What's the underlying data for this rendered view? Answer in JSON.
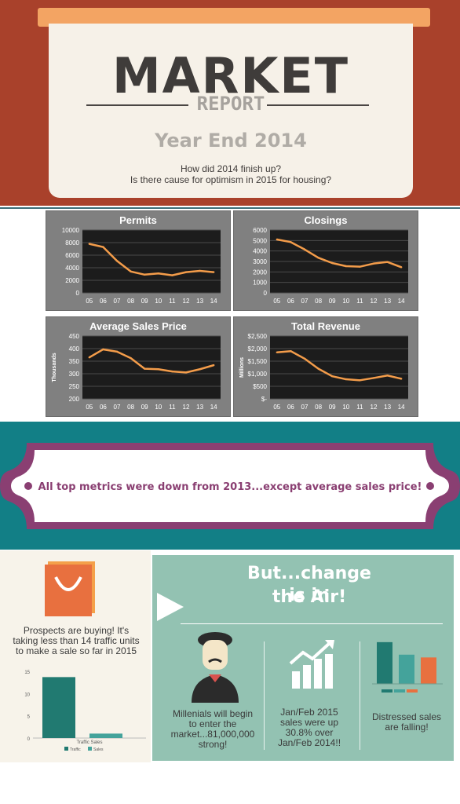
{
  "header": {
    "title": "MARKET",
    "subtitle": "REPORT",
    "year": "Year End 2014",
    "question1": "How did 2014 finish up?",
    "question2": "Is there cause for optimism in 2015 for housing?"
  },
  "colors": {
    "header_bg": "#a9412b",
    "line": "#f39c4a",
    "teal": "#127f86",
    "purple": "#8a3f72",
    "mint": "#93c2b2"
  },
  "chart_data": [
    {
      "type": "line",
      "title": "Permits",
      "ylabel": "",
      "x": [
        "05",
        "06",
        "07",
        "08",
        "09",
        "10",
        "11",
        "12",
        "13",
        "14"
      ],
      "values": [
        7800,
        7300,
        5100,
        3400,
        2900,
        3100,
        2800,
        3300,
        3500,
        3300
      ],
      "ylim": [
        0,
        10000
      ],
      "yticks": [
        "0",
        "2000",
        "4000",
        "6000",
        "8000",
        "10000"
      ]
    },
    {
      "type": "line",
      "title": "Closings",
      "ylabel": "",
      "x": [
        "05",
        "06",
        "07",
        "08",
        "09",
        "10",
        "11",
        "12",
        "13",
        "14"
      ],
      "values": [
        5100,
        4850,
        4150,
        3350,
        2850,
        2550,
        2500,
        2800,
        2950,
        2450
      ],
      "ylim": [
        0,
        6000
      ],
      "yticks": [
        "0",
        "1000",
        "2000",
        "3000",
        "4000",
        "5000",
        "6000"
      ]
    },
    {
      "type": "line",
      "title": "Average Sales Price",
      "ylabel": "Thousands",
      "x": [
        "05",
        "06",
        "07",
        "08",
        "09",
        "10",
        "11",
        "12",
        "13",
        "14"
      ],
      "values": [
        365,
        397,
        388,
        362,
        320,
        318,
        309,
        305,
        318,
        334
      ],
      "ylim": [
        200,
        450
      ],
      "yticks": [
        "200",
        "250",
        "300",
        "350",
        "400",
        "450"
      ]
    },
    {
      "type": "line",
      "title": "Total Revenue",
      "ylabel": "Millions",
      "x": [
        "05",
        "06",
        "07",
        "08",
        "09",
        "10",
        "11",
        "12",
        "13",
        "14"
      ],
      "values": [
        1850,
        1900,
        1600,
        1200,
        900,
        780,
        740,
        830,
        930,
        800
      ],
      "ylim": [
        0,
        2500
      ],
      "yticks": [
        "$-",
        "$500",
        "$1,000",
        "$1,500",
        "$2,000",
        "$2,500"
      ]
    },
    {
      "type": "bar",
      "title": "",
      "categories": [
        "Traffic Sales"
      ],
      "series": [
        {
          "name": "Traffic",
          "values": [
            13.7
          ]
        },
        {
          "name": "Sales",
          "values": [
            1
          ]
        }
      ],
      "ylim": [
        0,
        15
      ],
      "yticks": [
        "0",
        "5",
        "10",
        "15"
      ],
      "xlabel": "Traffic Sales"
    },
    {
      "type": "bar",
      "title": "",
      "categories": [
        "Distressed"
      ],
      "series": [
        {
          "name": "",
          "values": [
            30
          ]
        },
        {
          "name": "",
          "values": [
            21
          ]
        },
        {
          "name": "",
          "values": [
            19
          ]
        }
      ],
      "ylim": [
        0,
        35
      ]
    }
  ],
  "banner": {
    "text": "All top metrics were down from 2013...except average sales price!"
  },
  "left": {
    "text": "Prospects are buying! It's taking less than 14 traffic units to make a sale so far in 2015"
  },
  "right": {
    "headline1": "But...change is in",
    "headline2": "the Air!",
    "millenials": "Millenials will begin to enter the market...81,000,000 strong!",
    "sales": "Jan/Feb 2015 sales were up 30.8% over Jan/Feb 2014!!",
    "distressed": "Distressed sales are falling!"
  }
}
